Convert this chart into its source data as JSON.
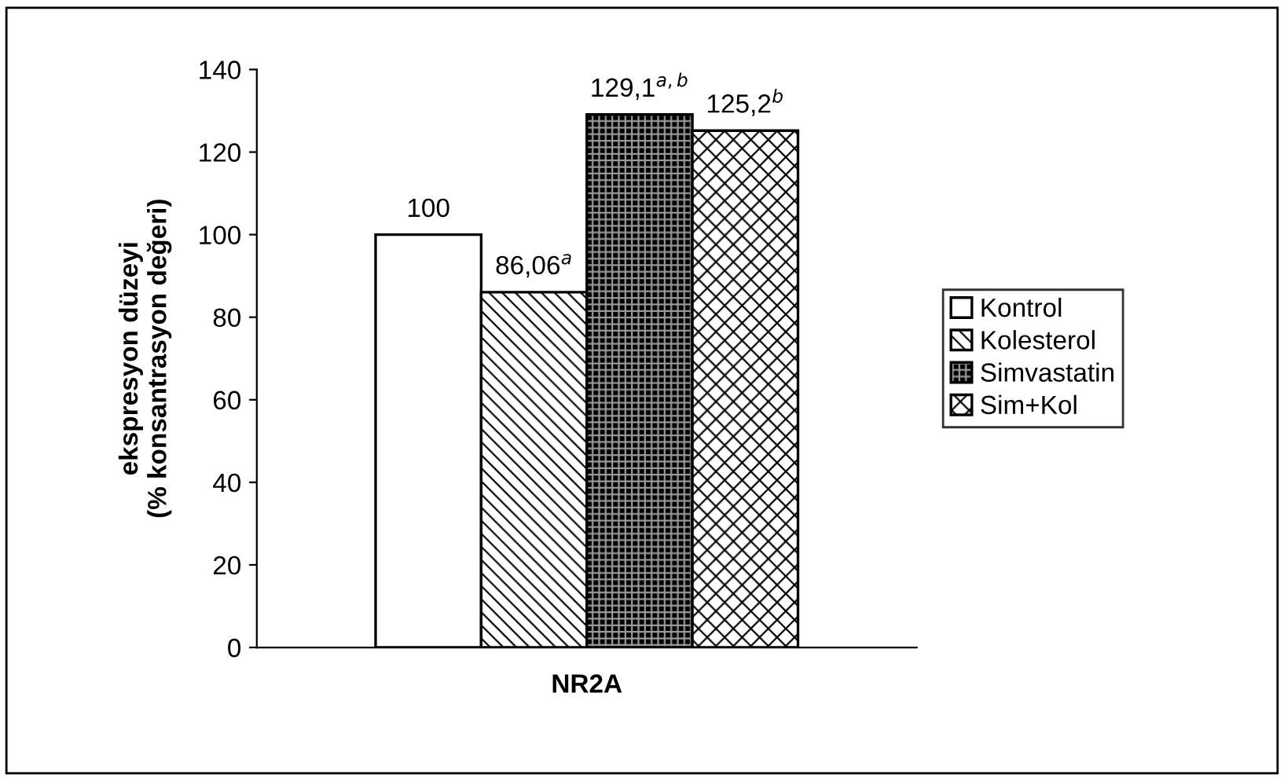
{
  "chart_data": {
    "type": "bar",
    "ylabel": "ekspresyon düzeyi\n(% konsantrasyon değeri)",
    "categories": [
      "NR2A"
    ],
    "series": [
      {
        "name": "Kontrol",
        "color": "#ffffff",
        "values": [
          100
        ],
        "value_labels": [
          "100"
        ]
      },
      {
        "name": "Kolesterol",
        "color": "#000000",
        "values": [
          86.06
        ],
        "value_labels": [
          "86,06$^{a}$"
        ]
      },
      {
        "name": "Simvastatin",
        "color": "#000000",
        "values": [
          129.1
        ],
        "value_labels": [
          "129,1$^{a,b}$"
        ]
      },
      {
        "name": "Sim+Kol",
        "color": "#000000",
        "values": [
          125.2
        ],
        "value_labels": [
          "125,2$^{b}$"
        ]
      }
    ],
    "ylim": [
      0,
      140
    ],
    "yticks": [
      0,
      20,
      40,
      60,
      80,
      100,
      120,
      140
    ],
    "grid": false,
    "legend": "right"
  }
}
